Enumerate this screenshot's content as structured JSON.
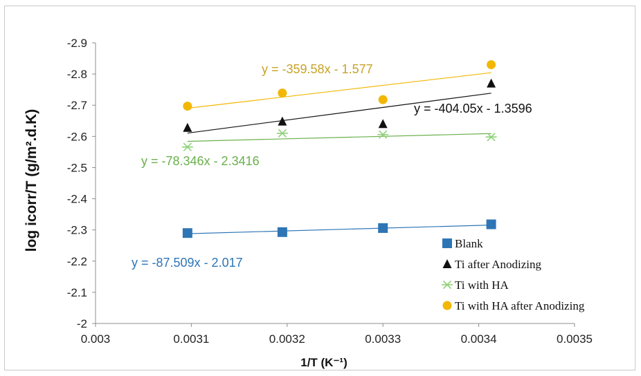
{
  "chart_data": {
    "type": "scatter",
    "title": "",
    "xlabel": "1/T (K⁻¹)",
    "ylabel": "log icorr/T (g/m².d.K)",
    "xlim": [
      0.003,
      0.0035
    ],
    "ylim": [
      -2,
      -2.9
    ],
    "y_axis_reversed": true,
    "x_ticks": [
      "0.003",
      "0.0031",
      "0.0032",
      "0.0033",
      "0.0034",
      "0.0035"
    ],
    "y_ticks": [
      "-2",
      "-2.1",
      "-2.2",
      "-2.3",
      "-2.4",
      "-2.5",
      "-2.6",
      "-2.7",
      "-2.8",
      "-2.9"
    ],
    "x": [
      0.003096,
      0.003195,
      0.0033,
      0.003413
    ],
    "grid": false,
    "legend_position": "bottom-right",
    "series": [
      {
        "name": "Blank",
        "marker": "square",
        "color": "#2e75b6",
        "values": [
          -2.29,
          -2.293,
          -2.306,
          -2.318
        ],
        "trendline": {
          "slope": -87.509,
          "intercept": -2.017,
          "equation": "y = -87.509x - 2.017",
          "color": "#2e75b6"
        }
      },
      {
        "name": "Ti after Anodizing",
        "marker": "triangle",
        "color": "#111111",
        "values": [
          -2.628,
          -2.648,
          -2.64,
          -2.77
        ],
        "trendline": {
          "slope": -404.05,
          "intercept": -1.3596,
          "equation": "y = -404.05x - 1.3596",
          "color": "#111111"
        }
      },
      {
        "name": "Ti with HA",
        "marker": "asterisk",
        "color": "#8fd17a",
        "values": [
          -2.566,
          -2.61,
          -2.606,
          -2.598
        ],
        "trendline": {
          "slope": -78.346,
          "intercept": -2.3416,
          "equation": "y = -78.346x - 2.3416",
          "color": "#6ab04c"
        }
      },
      {
        "name": "Ti with HA after Anodizing",
        "marker": "circle",
        "color": "#f2b705",
        "values": [
          -2.697,
          -2.739,
          -2.718,
          -2.83
        ],
        "trendline": {
          "slope": -359.58,
          "intercept": -1.577,
          "equation": "y = -359.58x - 1.577",
          "color": "#f2b705"
        }
      }
    ],
    "equation_colors": [
      "#2e75b6",
      "#111111",
      "#6ab04c",
      "#c9a227"
    ]
  }
}
